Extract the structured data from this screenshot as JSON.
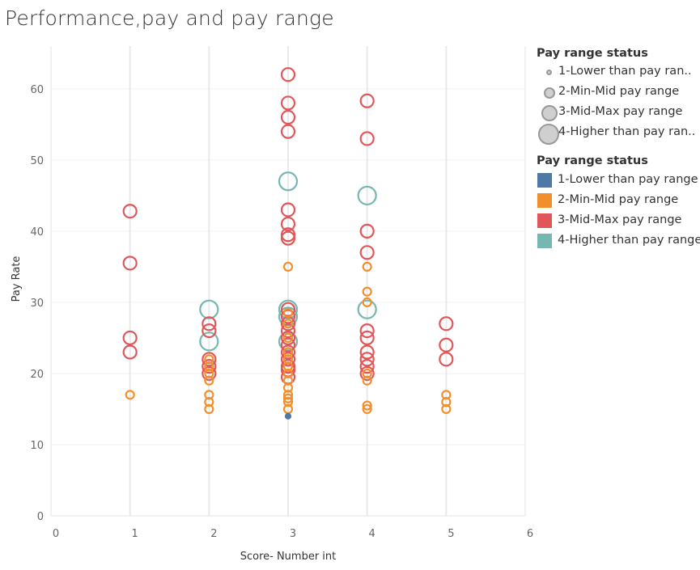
{
  "title": "Performance,pay and pay range",
  "legend_size": {
    "title": "Pay range status",
    "items": [
      {
        "label": "1-Lower than pay ran.."
      },
      {
        "label": "2-Min-Mid pay range"
      },
      {
        "label": "3-Mid-Max pay range"
      },
      {
        "label": "4-Higher than pay ran.."
      }
    ]
  },
  "legend_color": {
    "title": "Pay range status",
    "items": [
      {
        "label": "1-Lower than pay range",
        "color": "#4e79a7"
      },
      {
        "label": "2-Min-Mid pay range",
        "color": "#f28e2b"
      },
      {
        "label": "3-Mid-Max pay range",
        "color": "#e15759"
      },
      {
        "label": "4-Higher than pay range",
        "color": "#76b7b2"
      }
    ]
  },
  "chart_data": {
    "type": "scatter",
    "title": "Performance,pay and pay range",
    "xlabel": "Score- Number int",
    "ylabel": "Pay Rate",
    "xlim": [
      0,
      6
    ],
    "ylim": [
      0,
      66
    ],
    "xticks": [
      0,
      1,
      2,
      3,
      4,
      5,
      6
    ],
    "yticks": [
      0,
      10,
      20,
      30,
      40,
      50,
      60
    ],
    "grid": "vertical",
    "legend_position": "right",
    "series": [
      {
        "name": "1-Lower than pay range",
        "color": "#4e79a7",
        "size": 1,
        "points": [
          [
            3,
            14
          ]
        ]
      },
      {
        "name": "2-Min-Mid pay range",
        "color": "#f28e2b",
        "size": 2,
        "points": [
          [
            1,
            17
          ],
          [
            2,
            15
          ],
          [
            2,
            16
          ],
          [
            2,
            17
          ],
          [
            2,
            19
          ],
          [
            2,
            20
          ],
          [
            2,
            21
          ],
          [
            2,
            22
          ],
          [
            3,
            15
          ],
          [
            3,
            16
          ],
          [
            3,
            16.5
          ],
          [
            3,
            17
          ],
          [
            3,
            18
          ],
          [
            3,
            19
          ],
          [
            3,
            20
          ],
          [
            3,
            21
          ],
          [
            3,
            22
          ],
          [
            3,
            23
          ],
          [
            3,
            25
          ],
          [
            3,
            27
          ],
          [
            3,
            28.5
          ],
          [
            3,
            35
          ],
          [
            4,
            15
          ],
          [
            4,
            15.5
          ],
          [
            4,
            19
          ],
          [
            4,
            20
          ],
          [
            4,
            30
          ],
          [
            4,
            31.5
          ],
          [
            4,
            35
          ],
          [
            5,
            15
          ],
          [
            5,
            16
          ],
          [
            5,
            17
          ]
        ]
      },
      {
        "name": "3-Mid-Max pay range",
        "color": "#e15759",
        "size": 3,
        "points": [
          [
            1,
            23
          ],
          [
            1,
            25
          ],
          [
            1,
            35.5
          ],
          [
            1,
            42.8
          ],
          [
            2,
            20
          ],
          [
            2,
            21
          ],
          [
            2,
            22
          ],
          [
            2,
            26
          ],
          [
            2,
            27
          ],
          [
            3,
            19.5
          ],
          [
            3,
            20.5
          ],
          [
            3,
            21
          ],
          [
            3,
            22
          ],
          [
            3,
            23
          ],
          [
            3,
            24
          ],
          [
            3,
            25
          ],
          [
            3,
            26
          ],
          [
            3,
            27
          ],
          [
            3,
            28
          ],
          [
            3,
            29
          ],
          [
            3,
            39
          ],
          [
            3,
            39.5
          ],
          [
            3,
            41
          ],
          [
            3,
            43
          ],
          [
            3,
            54
          ],
          [
            3,
            56
          ],
          [
            3,
            58
          ],
          [
            3,
            62
          ],
          [
            4,
            20
          ],
          [
            4,
            21
          ],
          [
            4,
            22
          ],
          [
            4,
            23
          ],
          [
            4,
            25
          ],
          [
            4,
            26
          ],
          [
            4,
            37
          ],
          [
            4,
            40
          ],
          [
            4,
            53
          ],
          [
            4,
            58.3
          ],
          [
            5,
            22
          ],
          [
            5,
            24
          ],
          [
            5,
            27
          ]
        ]
      },
      {
        "name": "4-Higher than pay range",
        "color": "#76b7b2",
        "size": 4,
        "points": [
          [
            2,
            24.5
          ],
          [
            2,
            29
          ],
          [
            3,
            24.5
          ],
          [
            3,
            28
          ],
          [
            3,
            29
          ],
          [
            3,
            47
          ],
          [
            4,
            29
          ],
          [
            4,
            45
          ]
        ]
      }
    ]
  }
}
